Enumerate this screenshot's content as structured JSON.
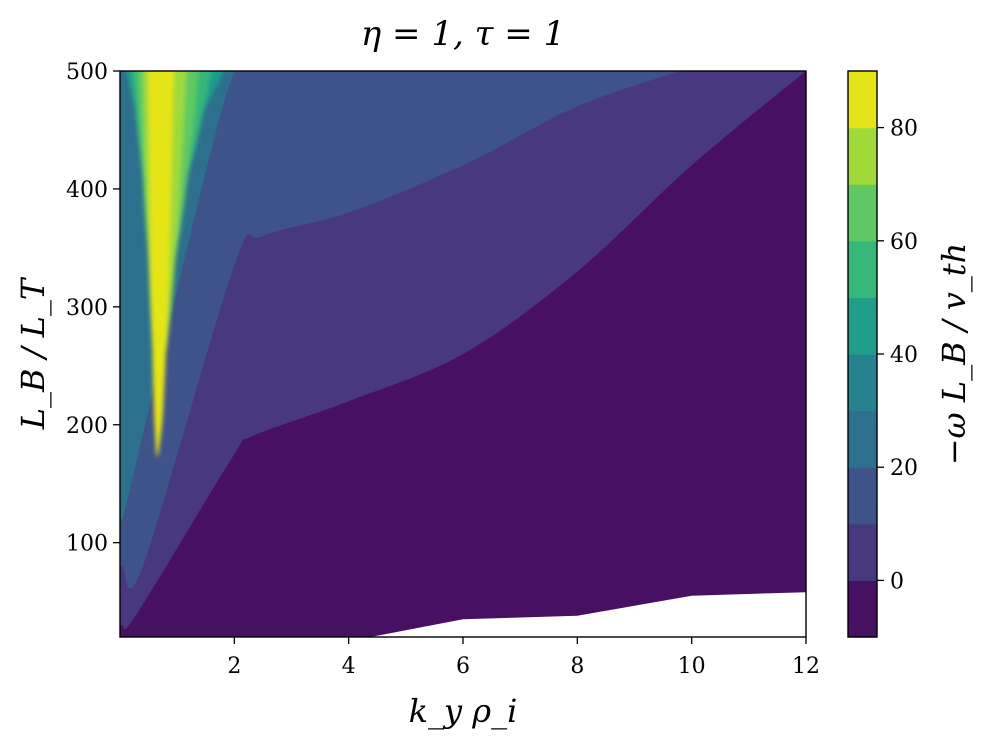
{
  "chart_data": {
    "type": "heatmap",
    "title": "η = 1, τ = 1",
    "xlabel": "k_y ρ_i",
    "ylabel": "L_B / L_T",
    "colorbar_label": "−ω L_B / v_th",
    "xlim": [
      0,
      12
    ],
    "ylim": [
      20,
      500
    ],
    "xticks": [
      2,
      4,
      6,
      8,
      10,
      12
    ],
    "yticks": [
      100,
      200,
      300,
      400,
      500
    ],
    "colorbar_range": [
      -10,
      90
    ],
    "colorbar_ticks": [
      0,
      20,
      40,
      60,
      80
    ],
    "contour_levels": [
      -10,
      0,
      10,
      20,
      30,
      40,
      50,
      60,
      70,
      80,
      90
    ],
    "level_colors": [
      "#471063",
      "#48387f",
      "#3e5389",
      "#2d708e",
      "#26828e",
      "#1f9e89",
      "#35b779",
      "#5ec962",
      "#9fda3a",
      "#e5e419"
    ],
    "regions": [
      {
        "range": [
          -10,
          0
        ],
        "boundary": [
          [
            1.3,
            20
          ],
          [
            2,
            55
          ],
          [
            4,
            85
          ],
          [
            6,
            115
          ],
          [
            8,
            150
          ],
          [
            10,
            190
          ],
          [
            12,
            230
          ]
        ]
      },
      {
        "range": [
          0,
          10
        ],
        "boundary": [
          [
            0.05,
            30
          ],
          [
            0.3,
            40
          ],
          [
            2,
            175
          ],
          [
            2.3,
            190
          ],
          [
            4,
            220
          ],
          [
            6,
            260
          ],
          [
            8,
            330
          ],
          [
            10,
            420
          ],
          [
            12,
            500
          ]
        ]
      },
      {
        "range": [
          10,
          20
        ],
        "boundary": [
          [
            0.05,
            80
          ],
          [
            0.4,
            80
          ],
          [
            2,
            335
          ],
          [
            2.5,
            360
          ],
          [
            4,
            380
          ],
          [
            6,
            420
          ],
          [
            8,
            470
          ],
          [
            9.8,
            500
          ]
        ]
      },
      {
        "range": [
          20,
          30
        ],
        "boundary": [
          [
            0.05,
            120
          ],
          [
            1.8,
            470
          ],
          [
            2.3,
            500
          ]
        ]
      }
    ],
    "max_location": {
      "x": 0.65,
      "y": 500,
      "value": 88
    },
    "undefined_region": {
      "from": [
        [
          6,
          35
        ],
        [
          8,
          38
        ],
        [
          10,
          55
        ],
        [
          12,
          58
        ]
      ]
    },
    "grid": false,
    "colorbar": "right"
  }
}
